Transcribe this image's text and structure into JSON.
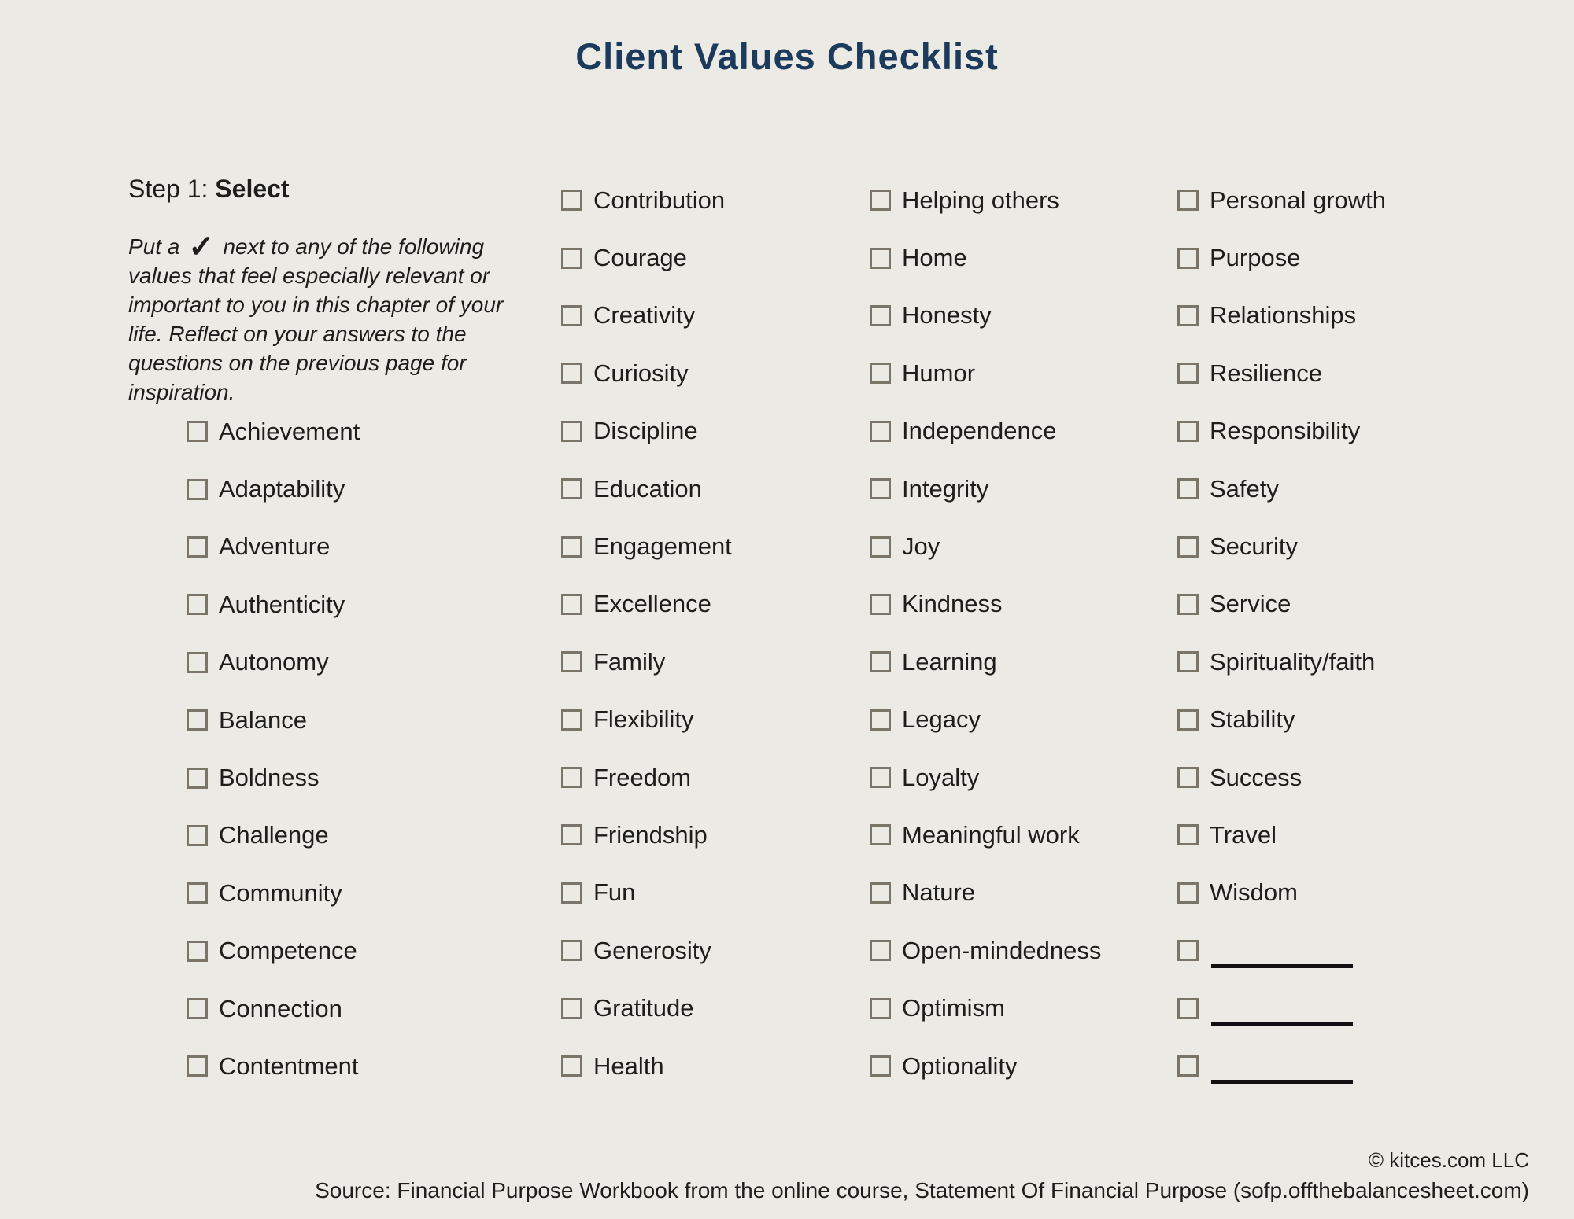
{
  "page": {
    "title": "Client Values Checklist",
    "step_heading": {
      "prefix": "Step 1: ",
      "bold": "Select"
    },
    "instructions": {
      "before_check": "Put a ",
      "check_symbol": "✓",
      "after_check": " next to any of the following values that feel especially relevant or important to you in this chapter of your life. Reflect on your answers to the questions on the previous page for inspiration."
    }
  },
  "checklist": {
    "checkbox_state": "unchecked",
    "column_1": [
      "Achievement",
      "Adaptability",
      "Adventure",
      "Authenticity",
      "Autonomy",
      "Balance",
      "Boldness",
      "Challenge",
      "Community",
      "Competence",
      "Connection",
      "Contentment"
    ],
    "column_2": [
      "Contribution",
      "Courage",
      "Creativity",
      "Curiosity",
      "Discipline",
      "Education",
      "Engagement",
      "Excellence",
      "Family",
      "Flexibility",
      "Freedom",
      "Friendship",
      "Fun",
      "Generosity",
      "Gratitude",
      "Health"
    ],
    "column_3": [
      "Helping others",
      "Home",
      "Honesty",
      "Humor",
      "Independence",
      "Integrity",
      "Joy",
      "Kindness",
      "Learning",
      "Legacy",
      "Loyalty",
      "Meaningful work",
      "Nature",
      "Open-mindedness",
      "Optimism",
      "Optionality"
    ],
    "column_4": [
      "Personal growth",
      "Purpose",
      "Relationships",
      "Resilience",
      "Responsibility",
      "Safety",
      "Security",
      "Service",
      "Spirituality/faith",
      "Stability",
      "Success",
      "Travel",
      "Wisdom"
    ],
    "column_4_blank_rows": 3
  },
  "footer": {
    "copyright": "© kitces.com LLC",
    "source": "Source: Financial Purpose Workbook from the online course, Statement Of Financial Purpose (sofp.offthebalancesheet.com)"
  },
  "colors": {
    "background": "#ECEAE4",
    "title": "#1B3A5C",
    "text": "#1D1D1B",
    "checkbox_border": "#7A7469",
    "write_in_line": "#111111"
  }
}
